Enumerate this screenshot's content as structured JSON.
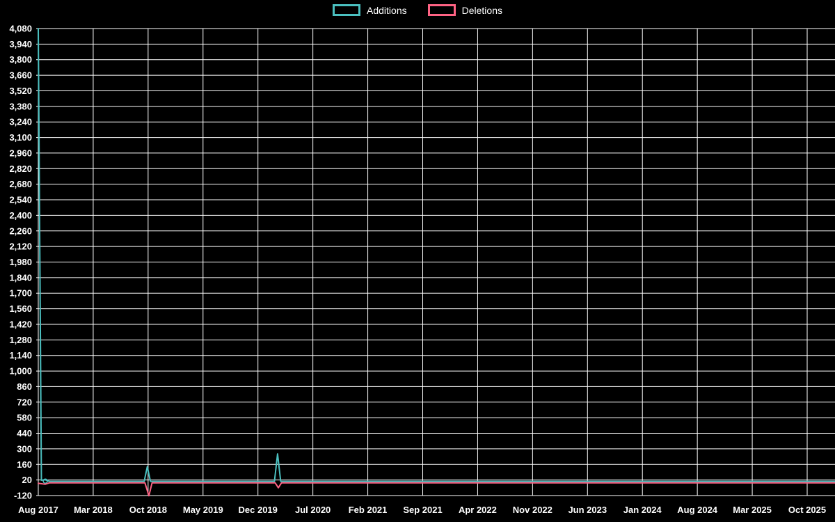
{
  "colors": {
    "background": "#000000",
    "grid": "#ffffff",
    "text": "#ffffff",
    "additions": "#4bc0c0",
    "deletions": "#ff6384"
  },
  "legend": {
    "items": [
      {
        "label": "Additions",
        "color_key": "additions"
      },
      {
        "label": "Deletions",
        "color_key": "deletions"
      }
    ]
  },
  "chart_data": {
    "type": "line",
    "title": "",
    "legend_position": "top-center",
    "grid": true,
    "x_axis_unit": "months since Aug 2017",
    "x_tick_interval_months": 7,
    "x_tick_labels": [
      "Aug 2017",
      "Mar 2018",
      "Oct 2018",
      "May 2019",
      "Dec 2019",
      "Jul 2020",
      "Feb 2021",
      "Sep 2021",
      "Apr 2022",
      "Nov 2022",
      "Jun 2023",
      "Jan 2024",
      "Aug 2024",
      "Mar 2025",
      "Oct 2025"
    ],
    "y_max": 4080,
    "y_min": -120,
    "y_step": 140,
    "y_tick_labels": [
      "4,080",
      "3,940",
      "3,800",
      "3,660",
      "3,520",
      "3,380",
      "3,240",
      "3,100",
      "2,960",
      "2,820",
      "2,680",
      "2,540",
      "2,400",
      "2,260",
      "2,120",
      "1,980",
      "1,840",
      "1,700",
      "1,560",
      "1,420",
      "1,280",
      "1,140",
      "1,000",
      "860",
      "720",
      "580",
      "440",
      "300",
      "160",
      "20",
      "-120"
    ],
    "series": [
      {
        "name": "Additions",
        "color_key": "additions",
        "points": [
          [
            0,
            4080
          ],
          [
            0.4,
            18
          ],
          [
            0.9,
            22
          ],
          [
            1.4,
            8
          ],
          [
            13.5,
            8
          ],
          [
            13.9,
            140
          ],
          [
            14.3,
            8
          ],
          [
            30.1,
            8
          ],
          [
            30.5,
            255
          ],
          [
            30.9,
            8
          ],
          [
            101.5,
            8
          ]
        ],
        "markers": [
          [
            0.9,
            10
          ]
        ]
      },
      {
        "name": "Deletions",
        "color_key": "deletions",
        "points": [
          [
            0,
            -10
          ],
          [
            0.9,
            -18
          ],
          [
            1.4,
            -6
          ],
          [
            13.6,
            -6
          ],
          [
            14.1,
            -122
          ],
          [
            14.5,
            -6
          ],
          [
            30.2,
            -6
          ],
          [
            30.6,
            -50
          ],
          [
            31.0,
            -6
          ],
          [
            101.5,
            -6
          ]
        ],
        "markers": []
      }
    ],
    "layout": {
      "grid_left": 52,
      "grid_right": 1200,
      "top": 41,
      "bottom": 712,
      "x_first_tick": 55,
      "x_last_tick": 1160,
      "x_label_y_offset": 25,
      "clamp_right": 1200
    }
  }
}
